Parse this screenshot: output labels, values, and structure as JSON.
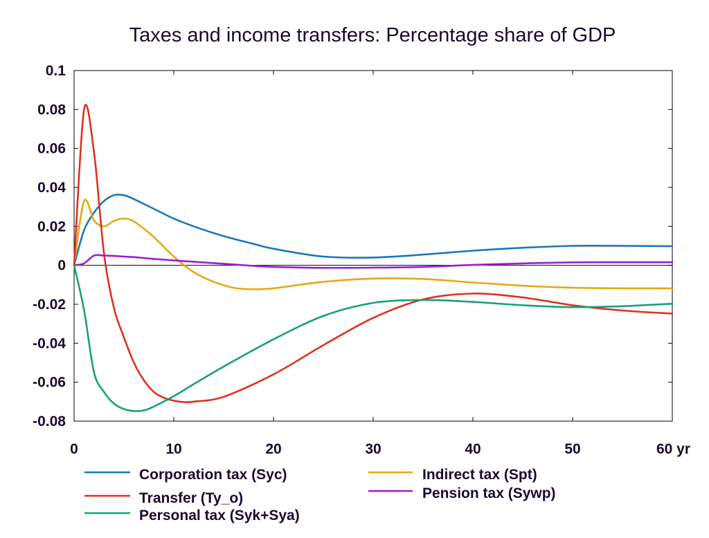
{
  "chart_data": {
    "type": "line",
    "title": "Taxes and income transfers: Percentage share of GDP",
    "xlabel": "",
    "ylabel": "",
    "xlim": [
      0,
      60
    ],
    "ylim": [
      -0.08,
      0.1
    ],
    "x_ticks": [
      0,
      10,
      20,
      30,
      40,
      50,
      60
    ],
    "x_tick_labels": [
      "0",
      "10",
      "20",
      "30",
      "40",
      "50",
      "60 yr"
    ],
    "y_ticks": [
      -0.08,
      -0.06,
      -0.04,
      -0.02,
      0,
      0.02,
      0.04,
      0.06,
      0.08,
      0.1
    ],
    "y_tick_labels": [
      "-0.08",
      "-0.06",
      "-0.04",
      "-0.02",
      "0",
      "0.02",
      "0.04",
      "0.06",
      "0.08",
      "0.1"
    ],
    "grid": false,
    "zero_line": true,
    "legend_position": "bottom",
    "series": [
      {
        "name": "Corporation tax (Syc)",
        "color": "#1a78b4",
        "x": [
          0,
          1,
          2,
          3,
          4,
          5,
          6,
          8,
          10,
          12,
          15,
          18,
          20,
          25,
          30,
          35,
          40,
          45,
          50,
          55,
          60
        ],
        "values": [
          0,
          0.018,
          0.027,
          0.033,
          0.036,
          0.036,
          0.034,
          0.029,
          0.024,
          0.02,
          0.015,
          0.011,
          0.0085,
          0.0045,
          0.004,
          0.0055,
          0.0075,
          0.009,
          0.01,
          0.01,
          0.0098
        ]
      },
      {
        "name": "Indirect tax (Spt)",
        "color": "#e6a817",
        "x": [
          0,
          1,
          2,
          3,
          4,
          5,
          6,
          8,
          10,
          12,
          14,
          16,
          18,
          20,
          25,
          30,
          35,
          40,
          45,
          50,
          55,
          60
        ],
        "values": [
          0,
          0.033,
          0.023,
          0.02,
          0.0228,
          0.024,
          0.0225,
          0.0145,
          0.0045,
          -0.0035,
          -0.0085,
          -0.0115,
          -0.0123,
          -0.0118,
          -0.0085,
          -0.0068,
          -0.007,
          -0.0088,
          -0.0105,
          -0.0115,
          -0.0118,
          -0.0118
        ]
      },
      {
        "name": "Transfer (Ty_o)",
        "color": "#e0301e",
        "x": [
          0,
          1,
          2,
          3,
          4,
          5,
          6,
          7,
          8,
          9,
          10,
          11,
          12,
          15,
          20,
          25,
          30,
          35,
          40,
          45,
          50,
          55,
          60
        ],
        "values": [
          0,
          0.08,
          0.058,
          0.006,
          -0.022,
          -0.037,
          -0.05,
          -0.059,
          -0.065,
          -0.068,
          -0.0695,
          -0.0702,
          -0.07,
          -0.0675,
          -0.056,
          -0.041,
          -0.027,
          -0.0175,
          -0.0145,
          -0.0165,
          -0.0205,
          -0.0232,
          -0.0248
        ]
      },
      {
        "name": "Pension tax (Sywp)",
        "color": "#9a1ed2",
        "x": [
          0,
          1,
          2,
          3,
          4,
          5,
          6,
          8,
          10,
          12,
          15,
          18,
          20,
          25,
          30,
          35,
          40,
          45,
          50,
          55,
          60
        ],
        "values": [
          0,
          0.001,
          0.005,
          0.005,
          0.0048,
          0.0045,
          0.0042,
          0.0033,
          0.0025,
          0.0018,
          0.0008,
          -0.0003,
          -0.0008,
          -0.0013,
          -0.0012,
          -0.0008,
          0.0002,
          0.001,
          0.0015,
          0.0016,
          0.0016
        ]
      },
      {
        "name": "Personal tax (Syk+Sya)",
        "color": "#17a079",
        "x": [
          0,
          1,
          2,
          3,
          4,
          5,
          6,
          7,
          8,
          10,
          12,
          15,
          20,
          25,
          30,
          35,
          40,
          45,
          50,
          55,
          60
        ],
        "values": [
          0,
          -0.023,
          -0.055,
          -0.065,
          -0.071,
          -0.0738,
          -0.0748,
          -0.0745,
          -0.0725,
          -0.0672,
          -0.061,
          -0.052,
          -0.038,
          -0.026,
          -0.0193,
          -0.0178,
          -0.0188,
          -0.0205,
          -0.0215,
          -0.021,
          -0.0197
        ]
      }
    ]
  }
}
